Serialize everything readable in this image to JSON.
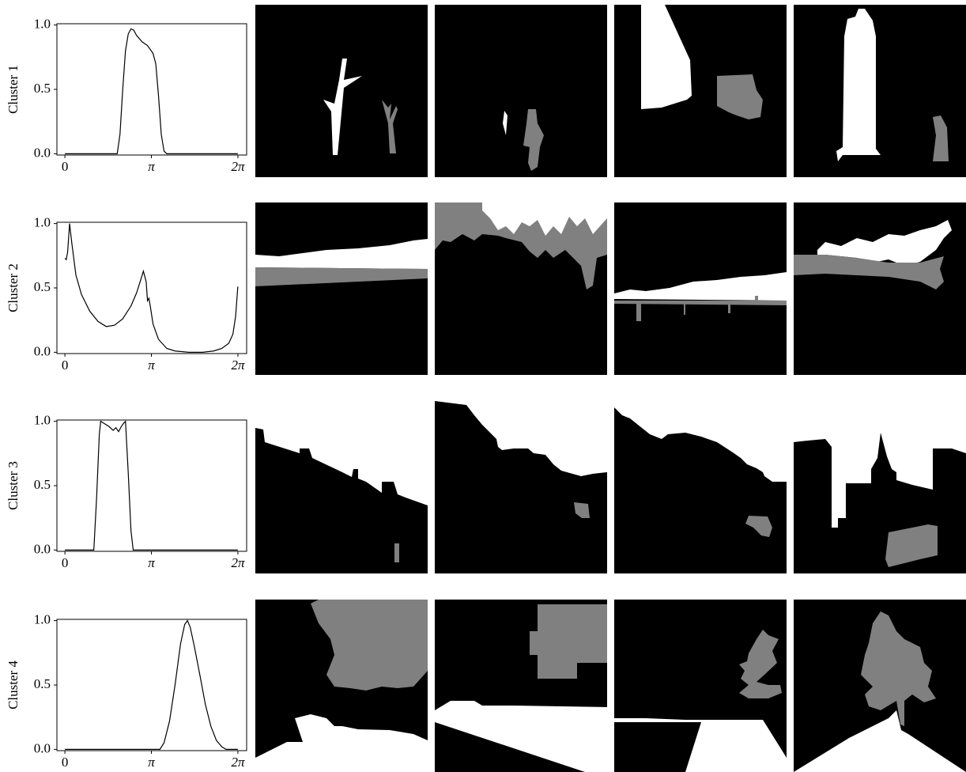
{
  "chart_data": [
    {
      "type": "line",
      "ylabel": "Cluster 1",
      "color": "#000000",
      "x": [
        0,
        1.9,
        2.0,
        2.1,
        2.2,
        2.3,
        2.4,
        2.5,
        2.6,
        2.8,
        3.0,
        3.2,
        3.3,
        3.4,
        3.5,
        3.6,
        3.7,
        6.28
      ],
      "values": [
        0,
        0,
        0.15,
        0.5,
        0.8,
        0.93,
        0.97,
        0.96,
        0.92,
        0.87,
        0.84,
        0.78,
        0.7,
        0.45,
        0.15,
        0.02,
        0,
        0
      ],
      "xlim": [
        -0.29,
        6.6
      ],
      "ylim": [
        -0.01,
        1.01
      ],
      "xticks": [
        0,
        {
          "value": 3.1416,
          "label": "π"
        },
        {
          "value": 6.2832,
          "label": "2π"
        }
      ],
      "yticks": [
        {
          "value": 0,
          "label": "0.0"
        },
        0.5,
        {
          "value": 1,
          "label": "1.0"
        }
      ]
    },
    {
      "type": "line",
      "ylabel": "Cluster 2",
      "color": "#000000",
      "x": [
        0,
        0.05,
        0.1,
        0.17,
        0.25,
        0.4,
        0.6,
        0.9,
        1.2,
        1.5,
        1.8,
        2.1,
        2.4,
        2.6,
        2.75,
        2.85,
        2.95,
        3.0,
        3.05,
        3.1,
        3.2,
        3.4,
        3.7,
        4.0,
        4.5,
        5.0,
        5.4,
        5.7,
        5.95,
        6.1,
        6.2,
        6.28
      ],
      "values": [
        0.73,
        0.72,
        0.78,
        1.0,
        0.85,
        0.6,
        0.45,
        0.32,
        0.24,
        0.2,
        0.21,
        0.26,
        0.36,
        0.46,
        0.56,
        0.63,
        0.55,
        0.4,
        0.42,
        0.36,
        0.22,
        0.1,
        0.03,
        0.01,
        0,
        0,
        0.01,
        0.03,
        0.07,
        0.14,
        0.28,
        0.51
      ],
      "xlim": [
        -0.29,
        6.6
      ],
      "ylim": [
        -0.01,
        1.01
      ],
      "xticks": [
        0,
        {
          "value": 3.1416,
          "label": "π"
        },
        {
          "value": 6.2832,
          "label": "2π"
        }
      ],
      "yticks": [
        {
          "value": 0,
          "label": "0.0"
        },
        0.5,
        {
          "value": 1,
          "label": "1.0"
        }
      ]
    },
    {
      "type": "line",
      "ylabel": "Cluster 3",
      "color": "#000000",
      "x": [
        0,
        1.05,
        1.15,
        1.25,
        1.3,
        1.45,
        1.6,
        1.75,
        1.85,
        1.95,
        2.05,
        2.15,
        2.2,
        2.3,
        2.4,
        2.48,
        6.28
      ],
      "values": [
        0,
        0,
        0.4,
        0.9,
        1.0,
        0.98,
        0.96,
        0.93,
        0.95,
        0.92,
        0.96,
        0.99,
        1.0,
        0.6,
        0.15,
        0,
        0
      ],
      "xlim": [
        -0.29,
        6.6
      ],
      "ylim": [
        -0.01,
        1.01
      ],
      "xticks": [
        0,
        {
          "value": 3.1416,
          "label": "π"
        },
        {
          "value": 6.2832,
          "label": "2π"
        }
      ],
      "yticks": [
        {
          "value": 0,
          "label": "0.0"
        },
        0.5,
        {
          "value": 1,
          "label": "1.0"
        }
      ]
    },
    {
      "type": "line",
      "ylabel": "Cluster 4",
      "color": "#000000",
      "x": [
        0,
        3.45,
        3.6,
        3.8,
        4.0,
        4.2,
        4.35,
        4.45,
        4.55,
        4.7,
        4.9,
        5.1,
        5.3,
        5.5,
        5.7,
        5.85,
        6.28
      ],
      "values": [
        0,
        0,
        0.05,
        0.22,
        0.5,
        0.82,
        0.97,
        1.0,
        0.95,
        0.8,
        0.58,
        0.35,
        0.18,
        0.07,
        0.02,
        0,
        0
      ],
      "xlim": [
        -0.29,
        6.6
      ],
      "ylim": [
        -0.01,
        1.01
      ],
      "xticks": [
        0,
        {
          "value": 3.1416,
          "label": "π"
        },
        {
          "value": 6.2832,
          "label": "2π"
        }
      ],
      "yticks": [
        {
          "value": 0,
          "label": "0.0"
        },
        0.5,
        {
          "value": 1,
          "label": "1.0"
        }
      ]
    }
  ]
}
